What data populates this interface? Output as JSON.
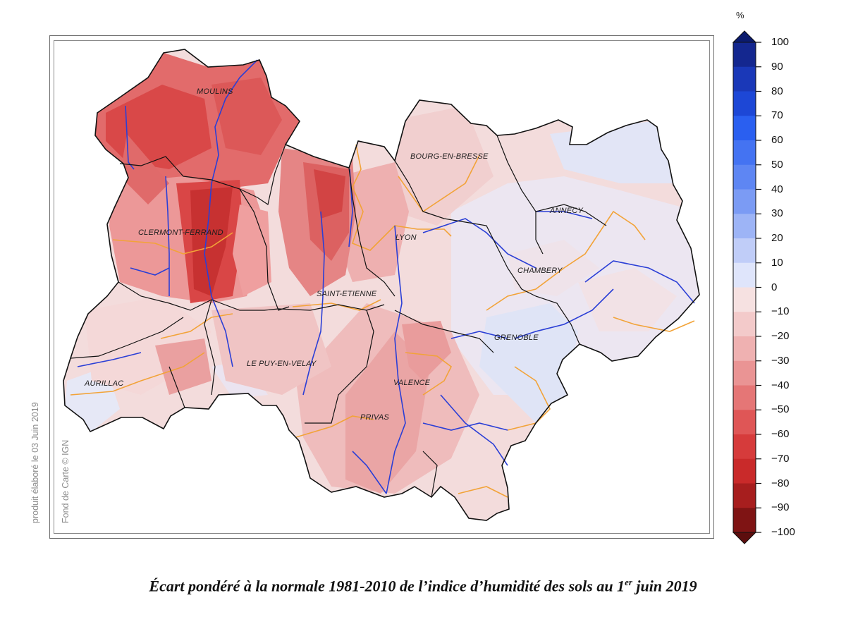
{
  "map": {
    "cities": [
      {
        "id": "moulins",
        "label": "MOULINS"
      },
      {
        "id": "clermont",
        "label": "CLERMONT-FERRAND"
      },
      {
        "id": "saint-etienne",
        "label": "SAINT-ETIENNE"
      },
      {
        "id": "le-puy",
        "label": "LE PUY-EN-VELAY"
      },
      {
        "id": "aurillac",
        "label": "AURILLAC"
      },
      {
        "id": "lyon",
        "label": "LYON"
      },
      {
        "id": "bourg",
        "label": "BOURG-EN-BRESSE"
      },
      {
        "id": "annecy",
        "label": "ANNECY"
      },
      {
        "id": "chambery",
        "label": "CHAMBERY"
      },
      {
        "id": "grenoble",
        "label": "GRENOBLE"
      },
      {
        "id": "valence",
        "label": "VALENCE"
      },
      {
        "id": "privas",
        "label": "PRIVAS"
      }
    ],
    "credit_date": "produit élaboré le 03 Juin 2019",
    "credit_basemap": "Fond de Carte © IGN"
  },
  "legend": {
    "unit": "%",
    "ticks": [
      "100",
      "90",
      "80",
      "70",
      "60",
      "50",
      "40",
      "30",
      "20",
      "10",
      "0",
      "−10",
      "−20",
      "−30",
      "−40",
      "−50",
      "−60",
      "−70",
      "−80",
      "−90",
      "−100"
    ],
    "colors": {
      "blue_end": "#0b1b6e",
      "blue_bands": [
        "#14278f",
        "#1a38b8",
        "#1d47d6",
        "#2a5ff0",
        "#4473f2",
        "#5e86f3",
        "#7b9bf4",
        "#9db4f6",
        "#c0cdf8",
        "#dfe5fb"
      ],
      "red_bands": [
        "#f6e1e1",
        "#f3caca",
        "#efb1b1",
        "#ea9494",
        "#e57676",
        "#df5656",
        "#d63b3b",
        "#c92a2a",
        "#a71e1e",
        "#7f1414"
      ],
      "red_end": "#5c0e0e"
    }
  },
  "caption": {
    "main": "Écart pondéré à la normale 1981-2010 de l’indice d’humidité des sols au 1",
    "sup": "er",
    "tail": " juin 2019"
  }
}
